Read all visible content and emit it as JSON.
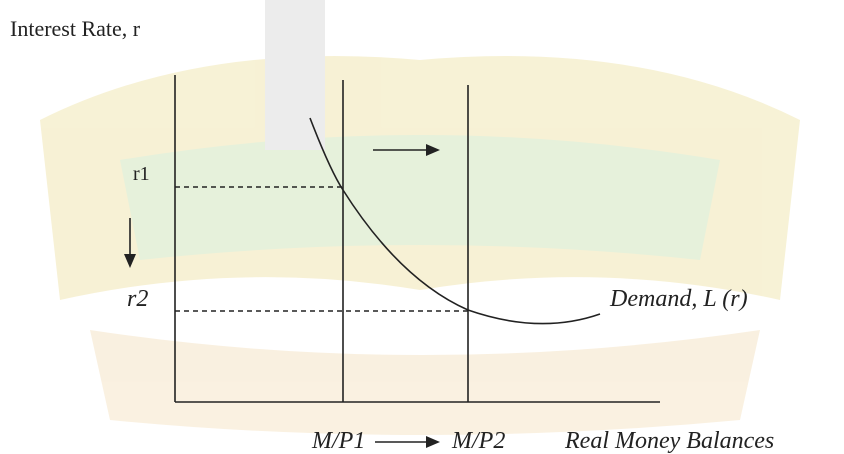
{
  "y_axis_title": "Interest Rate, r",
  "x_axis_title": "Real Money Balances",
  "rate_labels": [
    "r1",
    "r2"
  ],
  "supply_labels": [
    "M/P1",
    "M/P2"
  ],
  "demand_label": "Demand, L (r)"
}
